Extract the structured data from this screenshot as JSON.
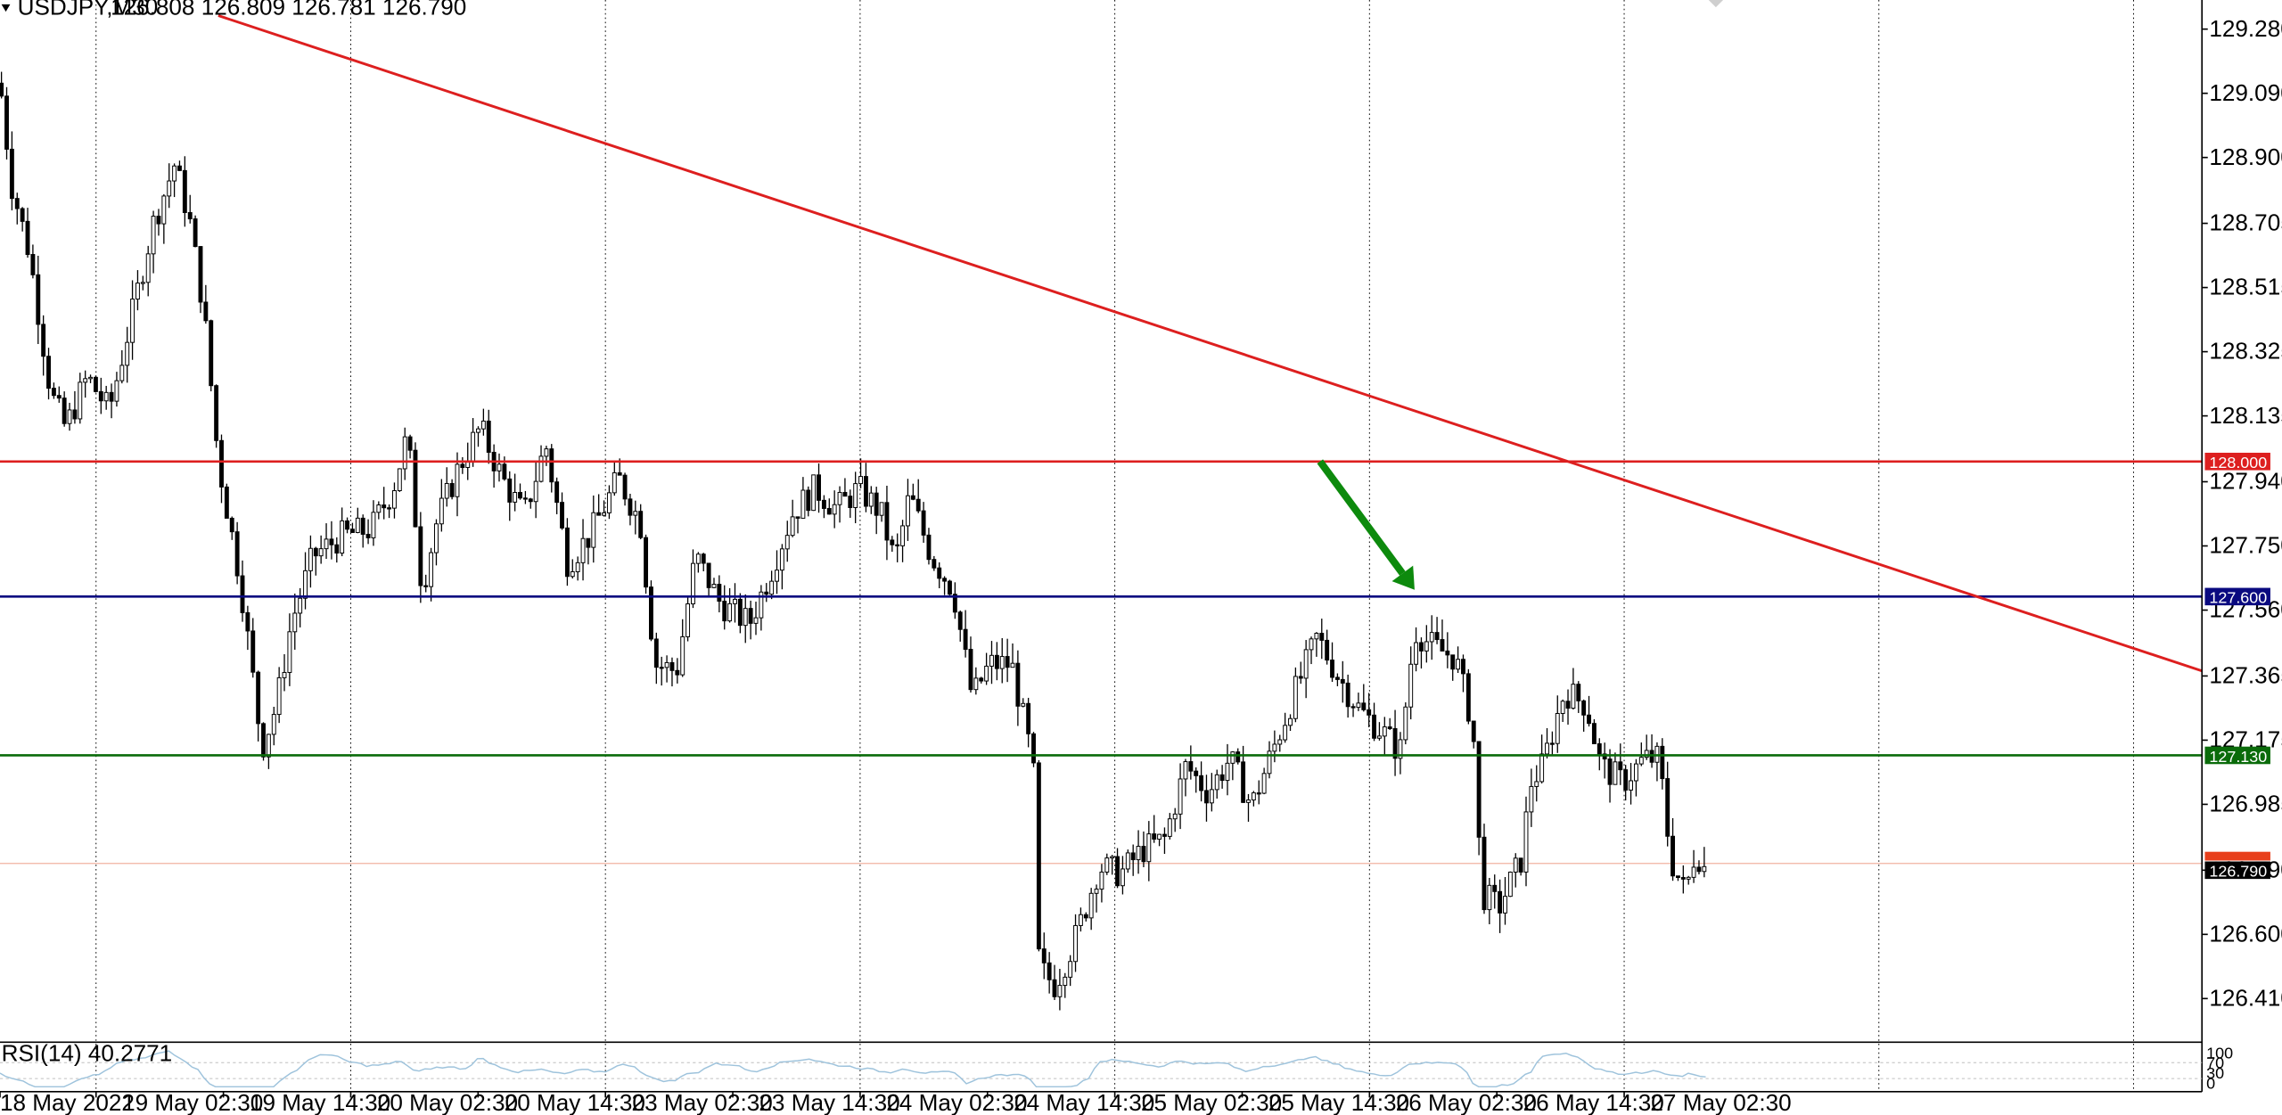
{
  "header": {
    "symbol_label": "USDJPY,M30",
    "ohlc_text": "126.808 126.809 126.781 126.790",
    "triangle_icon": "triangle-down-icon"
  },
  "rsi": {
    "label": "RSI(14) 40.2771",
    "levels": [
      "100",
      "70",
      "30",
      "0"
    ]
  },
  "colors": {
    "trendline": "#dd1f1f",
    "resistance": "#dd1f1f",
    "level_blue": "#0a0a80",
    "level_green": "#0a6b0a",
    "arrow": "#0d8a0d",
    "bid_line": "#f0b2a0",
    "rsi_line": "#9ec3dc",
    "candle": "#000000"
  },
  "chart_data": {
    "type": "candlestick",
    "symbol": "USDJPY",
    "timeframe": "M30",
    "ylim": [
      126.3,
      129.33
    ],
    "y_ticks": [
      "129.280",
      "129.090",
      "128.900",
      "128.705",
      "128.515",
      "128.325",
      "128.135",
      "127.940",
      "127.750",
      "127.560",
      "127.365",
      "127.175",
      "126.985",
      "126.790",
      "126.600",
      "126.410"
    ],
    "x_ticks": [
      "18 May 2022",
      "19 May 02:30",
      "19 May 14:30",
      "20 May 02:30",
      "20 May 14:30",
      "23 May 02:30",
      "23 May 14:30",
      "24 May 02:30",
      "24 May 14:30",
      "25 May 02:30",
      "25 May 14:30",
      "26 May 02:30",
      "26 May 14:30",
      "27 May 02:30"
    ],
    "price_path": [
      [
        0,
        129.12
      ],
      [
        8,
        128.82
      ],
      [
        20,
        128.62
      ],
      [
        35,
        128.2
      ],
      [
        45,
        128.1
      ],
      [
        60,
        128.25
      ],
      [
        75,
        128.15
      ],
      [
        90,
        128.42
      ],
      [
        105,
        128.7
      ],
      [
        120,
        128.88
      ],
      [
        130,
        128.72
      ],
      [
        140,
        128.45
      ],
      [
        150,
        128.0
      ],
      [
        165,
        127.65
      ],
      [
        180,
        127.15
      ],
      [
        190,
        127.28
      ],
      [
        200,
        127.52
      ],
      [
        215,
        127.72
      ],
      [
        235,
        127.78
      ],
      [
        255,
        127.8
      ],
      [
        270,
        127.92
      ],
      [
        280,
        128.08
      ],
      [
        290,
        127.62
      ],
      [
        300,
        127.82
      ],
      [
        315,
        127.98
      ],
      [
        330,
        128.1
      ],
      [
        345,
        127.95
      ],
      [
        360,
        127.84
      ],
      [
        375,
        128.05
      ],
      [
        390,
        127.7
      ],
      [
        405,
        127.78
      ],
      [
        425,
        127.95
      ],
      [
        440,
        127.82
      ],
      [
        450,
        127.4
      ],
      [
        465,
        127.38
      ],
      [
        478,
        127.72
      ],
      [
        495,
        127.58
      ],
      [
        515,
        127.52
      ],
      [
        530,
        127.68
      ],
      [
        545,
        127.85
      ],
      [
        560,
        127.92
      ],
      [
        575,
        127.86
      ],
      [
        590,
        127.92
      ],
      [
        605,
        127.85
      ],
      [
        615,
        127.7
      ],
      [
        625,
        127.9
      ],
      [
        640,
        127.72
      ],
      [
        655,
        127.62
      ],
      [
        668,
        127.3
      ],
      [
        680,
        127.4
      ],
      [
        695,
        127.4
      ],
      [
        710,
        127.1
      ],
      [
        714,
        126.5
      ],
      [
        725,
        126.45
      ],
      [
        740,
        126.6
      ],
      [
        755,
        126.8
      ],
      [
        770,
        126.78
      ],
      [
        785,
        126.85
      ],
      [
        800,
        126.88
      ],
      [
        815,
        127.1
      ],
      [
        830,
        127.02
      ],
      [
        845,
        127.12
      ],
      [
        860,
        126.98
      ],
      [
        875,
        127.15
      ],
      [
        890,
        127.32
      ],
      [
        905,
        127.48
      ],
      [
        920,
        127.36
      ],
      [
        935,
        127.26
      ],
      [
        950,
        127.2
      ],
      [
        962,
        127.14
      ],
      [
        972,
        127.5
      ],
      [
        985,
        127.45
      ],
      [
        1000,
        127.42
      ],
      [
        1012,
        127.22
      ],
      [
        1018,
        126.72
      ],
      [
        1030,
        126.68
      ],
      [
        1045,
        126.82
      ],
      [
        1052,
        127.05
      ],
      [
        1060,
        127.1
      ],
      [
        1075,
        127.32
      ],
      [
        1090,
        127.28
      ],
      [
        1100,
        127.1
      ],
      [
        1115,
        127.05
      ],
      [
        1130,
        127.12
      ],
      [
        1140,
        127.12
      ],
      [
        1148,
        126.82
      ],
      [
        1158,
        126.72
      ],
      [
        1165,
        126.85
      ],
      [
        1172,
        126.79
      ]
    ],
    "series": [
      {
        "name": "USDJPY,M30",
        "last": 126.79
      }
    ],
    "horizontal_levels": [
      {
        "price": 128.0,
        "label": "128.000",
        "color": "#dd1f1f"
      },
      {
        "price": 127.6,
        "label": "127.600",
        "color": "#0a0a80"
      },
      {
        "price": 127.13,
        "label": "127.130",
        "color": "#0a6b0a"
      },
      {
        "price": 126.79,
        "label": "126.790",
        "color": "#000000"
      }
    ],
    "trendline": {
      "x1": 150,
      "p1": 129.32,
      "x2": 1513,
      "p2": 127.38
    },
    "arrow": {
      "x1": 907,
      "p1": 128.0,
      "x2": 972,
      "p2": 127.62
    },
    "rsi_value": 40.2771,
    "grid": true
  }
}
